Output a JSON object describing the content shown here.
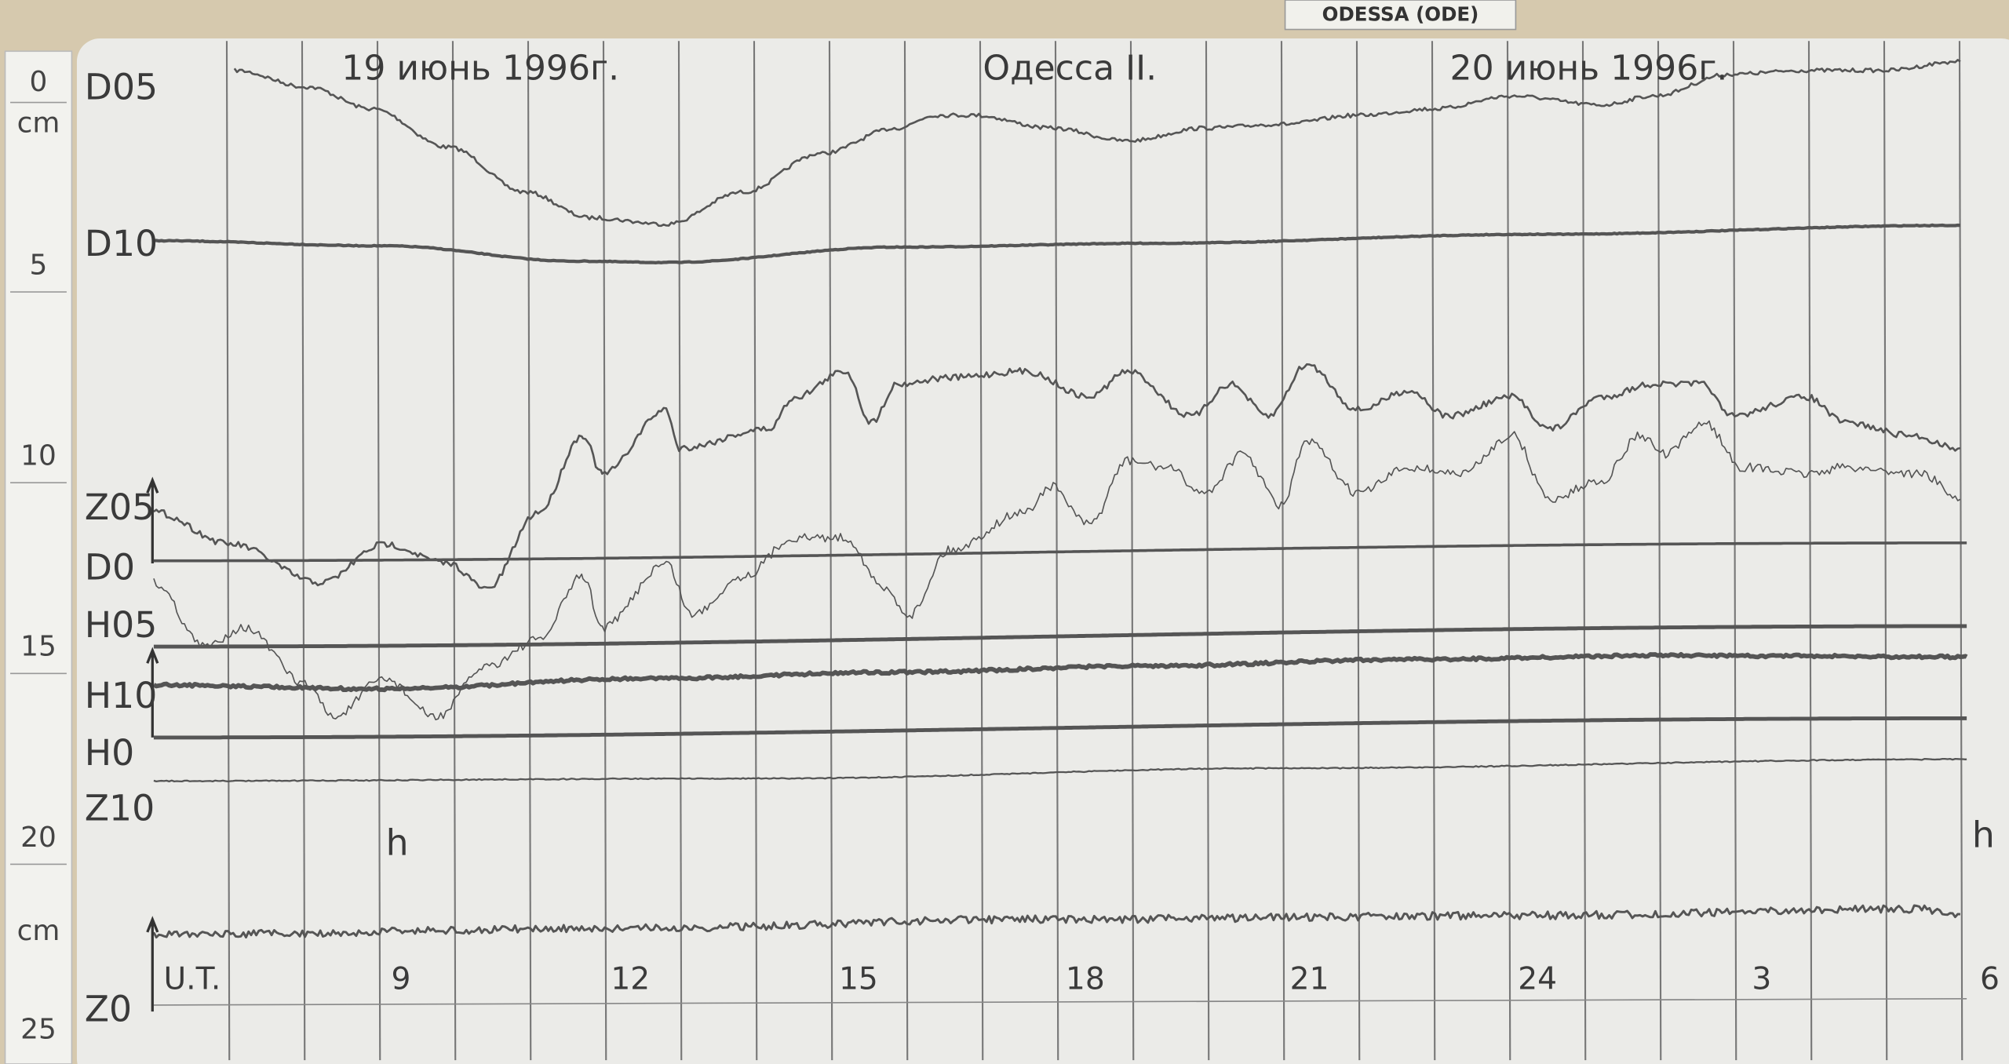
{
  "header": {
    "label": "ODESSA (ODE)"
  },
  "titles": {
    "left": "19 июнь 1996г.",
    "center": "Одесса II.",
    "right": "20 июнь 1996г."
  },
  "ruler": {
    "labels": [
      "0",
      "cm",
      "5",
      "10",
      "15",
      "20",
      "cm",
      "25"
    ]
  },
  "traces": {
    "labels": [
      "D05",
      "D10",
      "Z05",
      "D0",
      "H05",
      "H10",
      "H0",
      "Z10",
      "Z0"
    ]
  },
  "hours": [
    "U.T.",
    "9",
    "12",
    "15",
    "18",
    "21",
    "24",
    "3",
    "6"
  ],
  "hour_marks": [
    "h",
    "h"
  ]
}
